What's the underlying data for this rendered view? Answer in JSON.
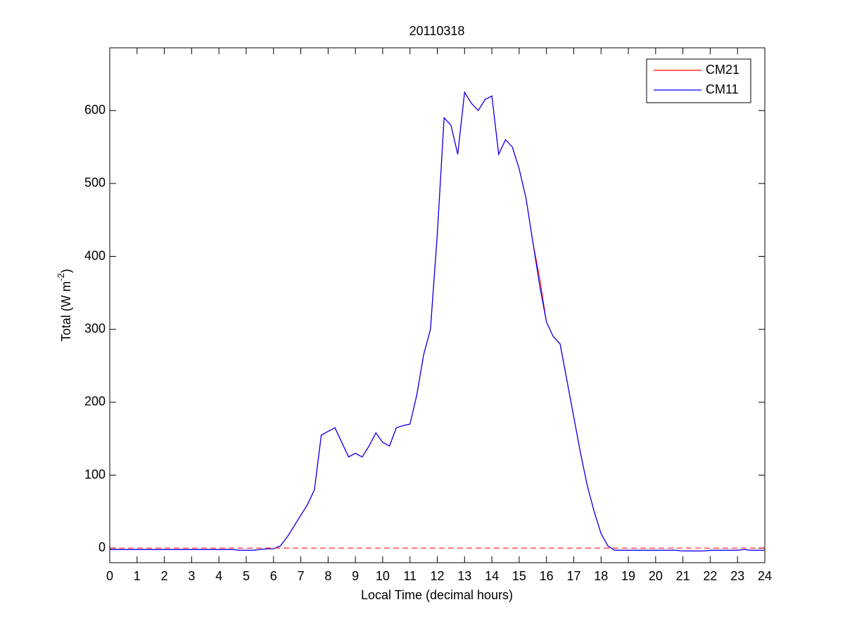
{
  "chart_data": {
    "type": "line",
    "title": "20110318",
    "xlabel": "Local Time (decimal hours)",
    "ylabel": {
      "text": "Total (W m",
      "superscript": "-2",
      "suffix": ")"
    },
    "x": [
      0,
      0.25,
      0.5,
      0.75,
      1,
      1.25,
      1.5,
      1.75,
      2,
      2.25,
      2.5,
      2.75,
      3,
      3.25,
      3.5,
      3.75,
      4,
      4.25,
      4.5,
      4.75,
      5,
      5.25,
      5.5,
      5.75,
      6,
      6.25,
      6.5,
      6.75,
      7,
      7.25,
      7.5,
      7.75,
      8,
      8.25,
      8.5,
      8.75,
      9,
      9.25,
      9.5,
      9.75,
      10,
      10.25,
      10.5,
      10.75,
      11,
      11.25,
      11.5,
      11.75,
      12,
      12.25,
      12.5,
      12.75,
      13,
      13.25,
      13.5,
      13.75,
      14,
      14.25,
      14.5,
      14.75,
      15,
      15.25,
      15.5,
      15.75,
      16,
      16.25,
      16.5,
      16.75,
      17,
      17.25,
      17.5,
      17.75,
      18,
      18.25,
      18.5,
      18.75,
      19,
      19.25,
      19.5,
      19.75,
      20,
      20.25,
      20.5,
      20.75,
      21,
      21.25,
      21.5,
      21.75,
      22,
      22.25,
      22.5,
      22.75,
      23,
      23.25,
      23.5,
      23.75,
      24
    ],
    "series": [
      {
        "name": "CM21",
        "color": "#ff0000",
        "values": [
          -2,
          -2,
          -2,
          -2,
          -2,
          -2,
          -2,
          -2,
          -2,
          -2,
          -2,
          -2,
          -2,
          -2,
          -2,
          -2,
          -2,
          -2,
          -2,
          -3,
          -3,
          -3,
          -2,
          -1,
          -1,
          3,
          15,
          30,
          45,
          60,
          80,
          155,
          160,
          165,
          145,
          125,
          130,
          125,
          140,
          158,
          145,
          140,
          165,
          168,
          170,
          210,
          265,
          300,
          430,
          590,
          580,
          540,
          625,
          610,
          600,
          615,
          620,
          540,
          560,
          550,
          520,
          480,
          420,
          370,
          310,
          290,
          280,
          230,
          180,
          130,
          85,
          50,
          20,
          3,
          -3,
          -3,
          -3,
          -3,
          -3,
          -3,
          -3,
          -3,
          -3,
          -3,
          -4,
          -4,
          -4,
          -4,
          -3,
          -3,
          -3,
          -3,
          -3,
          -2,
          -3,
          -3,
          -3
        ]
      },
      {
        "name": "CM11",
        "color": "#0000ff",
        "values": [
          -2,
          -2,
          -2,
          -2,
          -2,
          -2,
          -2,
          -2,
          -2,
          -2,
          -2,
          -2,
          -2,
          -2,
          -2,
          -2,
          -2,
          -2,
          -2,
          -3,
          -3,
          -3,
          -2,
          -1,
          -1,
          3,
          15,
          30,
          45,
          60,
          80,
          155,
          160,
          165,
          145,
          125,
          130,
          125,
          140,
          158,
          145,
          140,
          165,
          168,
          170,
          210,
          265,
          300,
          430,
          590,
          580,
          540,
          625,
          610,
          600,
          615,
          620,
          540,
          560,
          550,
          520,
          480,
          420,
          360,
          310,
          290,
          280,
          230,
          180,
          130,
          85,
          50,
          20,
          3,
          -3,
          -3,
          -3,
          -3,
          -3,
          -3,
          -3,
          -3,
          -3,
          -3,
          -4,
          -4,
          -4,
          -4,
          -3,
          -3,
          -3,
          -3,
          -3,
          -2,
          -3,
          -3,
          -3
        ]
      }
    ],
    "hline": {
      "value": 0,
      "color": "#ff0000"
    },
    "xlim": [
      0,
      24
    ],
    "xticks": [
      0,
      1,
      2,
      3,
      4,
      5,
      6,
      7,
      8,
      9,
      10,
      11,
      12,
      13,
      14,
      15,
      16,
      17,
      18,
      19,
      20,
      21,
      22,
      23,
      24
    ],
    "ylim": [
      -20,
      686
    ],
    "yticks": [
      0,
      100,
      200,
      300,
      400,
      500,
      600
    ],
    "legend": "upper right"
  }
}
